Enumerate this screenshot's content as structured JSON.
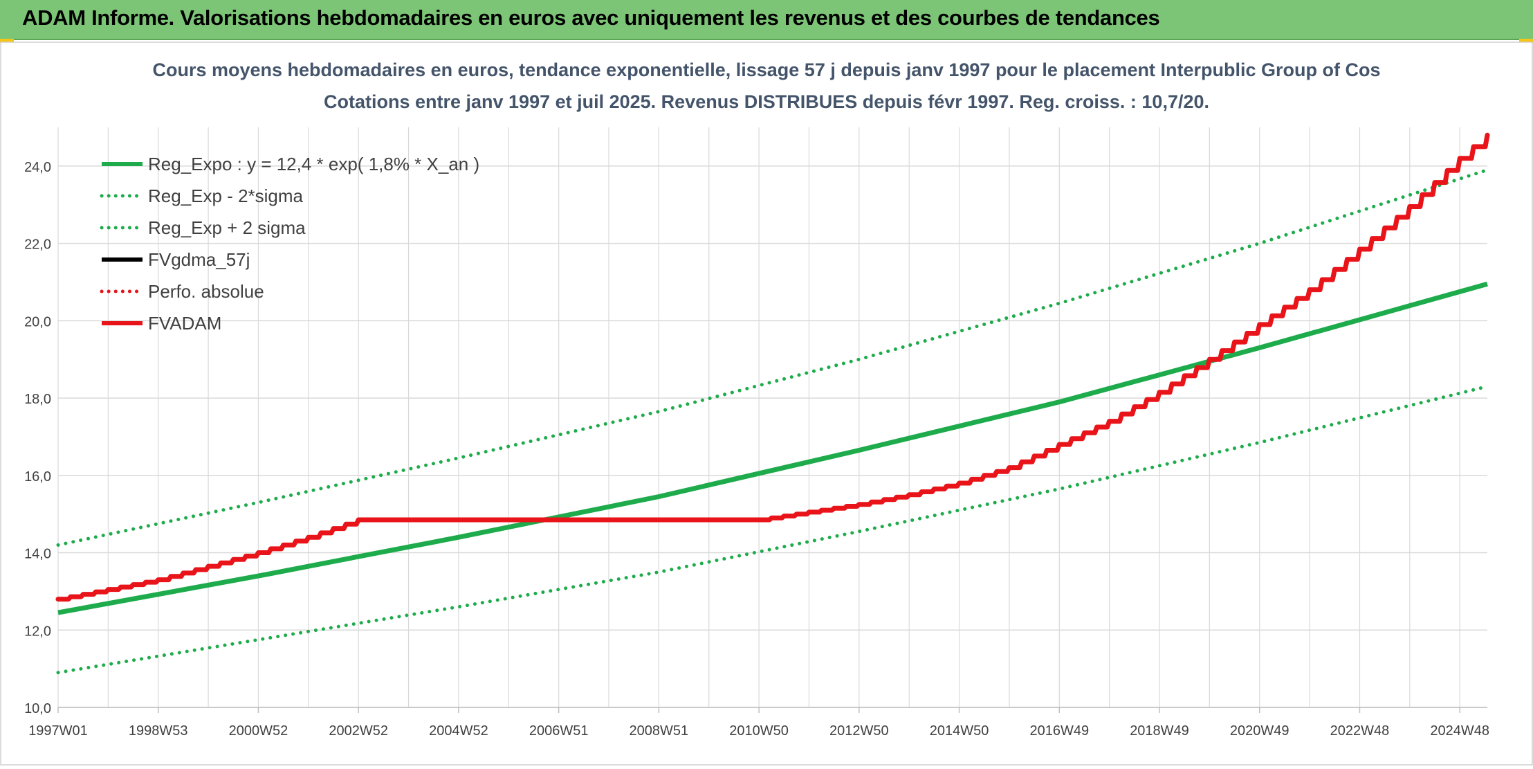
{
  "banner": {
    "title": "ADAM Informe. Valorisations hebdomadaires en euros avec uniquement les revenus et des courbes de tendances"
  },
  "colors": {
    "banner_bg": "#7cc576",
    "green": "#1eab4c",
    "red": "#e8141a",
    "black": "#000000",
    "grid": "#d9d9d9"
  },
  "chart_data": {
    "type": "line",
    "title_line1": "Cours moyens hebdomadaires en euros, tendance exponentielle, lissage 57 j depuis janv 1997 pour le placement Interpublic Group of Cos",
    "title_line2": "Cotations entre janv 1997 et juil 2025. Revenus DISTRIBUES depuis févr 1997. Reg. croiss. : 10,7/20.",
    "xlabel": "",
    "ylabel": "",
    "x_range": [
      1997.0,
      2025.55
    ],
    "ylim": [
      10,
      25
    ],
    "y_ticks": [
      "10,0",
      "12,0",
      "14,0",
      "16,0",
      "18,0",
      "20,0",
      "22,0",
      "24,0"
    ],
    "x_ticks": [
      {
        "label": "1997W01",
        "x": 1997.0
      },
      {
        "label": "1998W53",
        "x": 1999.0
      },
      {
        "label": "2000W52",
        "x": 2001.0
      },
      {
        "label": "2002W52",
        "x": 2003.0
      },
      {
        "label": "2004W52",
        "x": 2005.0
      },
      {
        "label": "2006W51",
        "x": 2007.0
      },
      {
        "label": "2008W51",
        "x": 2009.0
      },
      {
        "label": "2010W50",
        "x": 2011.0
      },
      {
        "label": "2012W50",
        "x": 2013.0
      },
      {
        "label": "2014W50",
        "x": 2015.0
      },
      {
        "label": "2016W49",
        "x": 2017.0
      },
      {
        "label": "2018W49",
        "x": 2019.0
      },
      {
        "label": "2020W49",
        "x": 2021.0
      },
      {
        "label": "2022W48",
        "x": 2023.0
      },
      {
        "label": "2024W48",
        "x": 2025.0
      }
    ],
    "grid": true,
    "legend_position": "top-left",
    "legend": [
      {
        "label": "Reg_Expo : y = 12,4 * exp( 1,8% *  X_an )",
        "color": "#1eab4c",
        "style": "solid"
      },
      {
        "label": "Reg_Exp - 2*sigma",
        "color": "#1eab4c",
        "style": "dotted"
      },
      {
        "label": "Reg_Exp + 2 sigma",
        "color": "#1eab4c",
        "style": "dotted"
      },
      {
        "label": "FVgdma_57j",
        "color": "#000000",
        "style": "solid"
      },
      {
        "label": "Perfo. absolue",
        "color": "#e8141a",
        "style": "dotted"
      },
      {
        "label": "FVADAM",
        "color": "#e8141a",
        "style": "solid"
      }
    ],
    "series": [
      {
        "name": "Reg_Expo : y = 12,4 * exp( 1,8% *  X_an )",
        "color": "#1eab4c",
        "style": "solid",
        "x": [
          1997.0,
          2001.0,
          2005.0,
          2009.0,
          2013.0,
          2017.0,
          2021.0,
          2025.55
        ],
        "y": [
          12.45,
          13.4,
          14.4,
          15.45,
          16.65,
          17.9,
          19.3,
          20.95
        ]
      },
      {
        "name": "Reg_Exp - 2*sigma",
        "color": "#1eab4c",
        "style": "dotted",
        "x": [
          1997.0,
          2001.0,
          2005.0,
          2009.0,
          2013.0,
          2017.0,
          2021.0,
          2025.55
        ],
        "y": [
          10.9,
          11.75,
          12.6,
          13.5,
          14.55,
          15.65,
          16.85,
          18.3
        ]
      },
      {
        "name": "Reg_Exp + 2 sigma",
        "color": "#1eab4c",
        "style": "dotted",
        "x": [
          1997.0,
          2001.0,
          2005.0,
          2009.0,
          2013.0,
          2017.0,
          2021.0,
          2025.55
        ],
        "y": [
          14.2,
          15.3,
          16.45,
          17.65,
          19.0,
          20.45,
          22.0,
          23.9
        ]
      },
      {
        "name": "FVADAM",
        "color": "#e8141a",
        "style": "solid",
        "x": [
          1997.0,
          1998.0,
          1999.0,
          2000.0,
          2001.0,
          2002.0,
          2003.0,
          2006.0,
          2009.0,
          2011.0,
          2012.0,
          2013.0,
          2014.0,
          2015.0,
          2016.0,
          2017.0,
          2018.0,
          2019.0,
          2020.0,
          2021.0,
          2022.0,
          2023.0,
          2024.0,
          2025.0,
          2025.55
        ],
        "y": [
          12.8,
          13.05,
          13.3,
          13.65,
          14.0,
          14.4,
          14.85,
          14.85,
          14.85,
          14.85,
          15.05,
          15.25,
          15.5,
          15.8,
          16.2,
          16.8,
          17.4,
          18.15,
          19.0,
          19.9,
          20.8,
          21.85,
          22.95,
          24.2,
          24.8
        ]
      }
    ]
  }
}
